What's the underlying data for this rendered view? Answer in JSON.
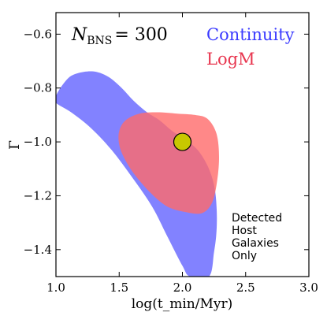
{
  "chart_data": {
    "type": "area",
    "title": "",
    "xlabel": "log(t_min/Myr)",
    "ylabel": "Γ",
    "xlim": [
      1.0,
      3.0
    ],
    "ylim": [
      -1.5,
      -0.52
    ],
    "xticks": [
      "1.0",
      "1.5",
      "2.0",
      "2.5",
      "3.0"
    ],
    "yticks": [
      "−0.6",
      "−0.8",
      "−1.0",
      "−1.2",
      "−1.4"
    ],
    "yticks_values": [
      -0.6,
      -0.8,
      -1.0,
      -1.2,
      -1.4
    ],
    "xticks_values": [
      1.0,
      1.5,
      2.0,
      2.5,
      3.0
    ],
    "annotation_nbns": {
      "symbol": "N",
      "subscript": "BNS",
      "value": "= 300"
    },
    "annotation_detected": [
      "Detected",
      "Host",
      "Galaxies",
      "Only"
    ],
    "legend": [
      {
        "name": "Continuity",
        "color": "#6b6bff"
      },
      {
        "name": "LogM",
        "color": "#e8364f"
      }
    ],
    "series": [
      {
        "name": "Continuity",
        "color": "#7b7bff",
        "region": [
          [
            1.0,
            -0.83
          ],
          [
            1.05,
            -0.79
          ],
          [
            1.12,
            -0.755
          ],
          [
            1.22,
            -0.74
          ],
          [
            1.32,
            -0.74
          ],
          [
            1.42,
            -0.76
          ],
          [
            1.52,
            -0.8
          ],
          [
            1.62,
            -0.85
          ],
          [
            1.72,
            -0.89
          ],
          [
            1.82,
            -0.92
          ],
          [
            1.92,
            -0.96
          ],
          [
            2.02,
            -0.99
          ],
          [
            2.12,
            -1.03
          ],
          [
            2.2,
            -1.09
          ],
          [
            2.25,
            -1.16
          ],
          [
            2.27,
            -1.24
          ],
          [
            2.27,
            -1.33
          ],
          [
            2.25,
            -1.41
          ],
          [
            2.21,
            -1.5
          ],
          [
            2.06,
            -1.5
          ],
          [
            2.0,
            -1.46
          ],
          [
            1.88,
            -1.35
          ],
          [
            1.76,
            -1.24
          ],
          [
            1.6,
            -1.13
          ],
          [
            1.44,
            -1.03
          ],
          [
            1.28,
            -0.95
          ],
          [
            1.12,
            -0.89
          ],
          [
            1.0,
            -0.855
          ]
        ]
      },
      {
        "name": "LogM",
        "color": "#ff6a6a",
        "region": [
          [
            1.5,
            -0.96
          ],
          [
            1.55,
            -0.92
          ],
          [
            1.66,
            -0.895
          ],
          [
            1.8,
            -0.89
          ],
          [
            1.96,
            -0.895
          ],
          [
            2.1,
            -0.9
          ],
          [
            2.2,
            -0.915
          ],
          [
            2.27,
            -0.97
          ],
          [
            2.29,
            -1.06
          ],
          [
            2.27,
            -1.16
          ],
          [
            2.23,
            -1.23
          ],
          [
            2.15,
            -1.265
          ],
          [
            2.02,
            -1.26
          ],
          [
            1.88,
            -1.24
          ],
          [
            1.75,
            -1.19
          ],
          [
            1.62,
            -1.12
          ],
          [
            1.54,
            -1.06
          ],
          [
            1.5,
            -1.01
          ]
        ]
      }
    ],
    "marker": {
      "x": 2.0,
      "y": -1.0,
      "color": "#c8c800"
    }
  }
}
